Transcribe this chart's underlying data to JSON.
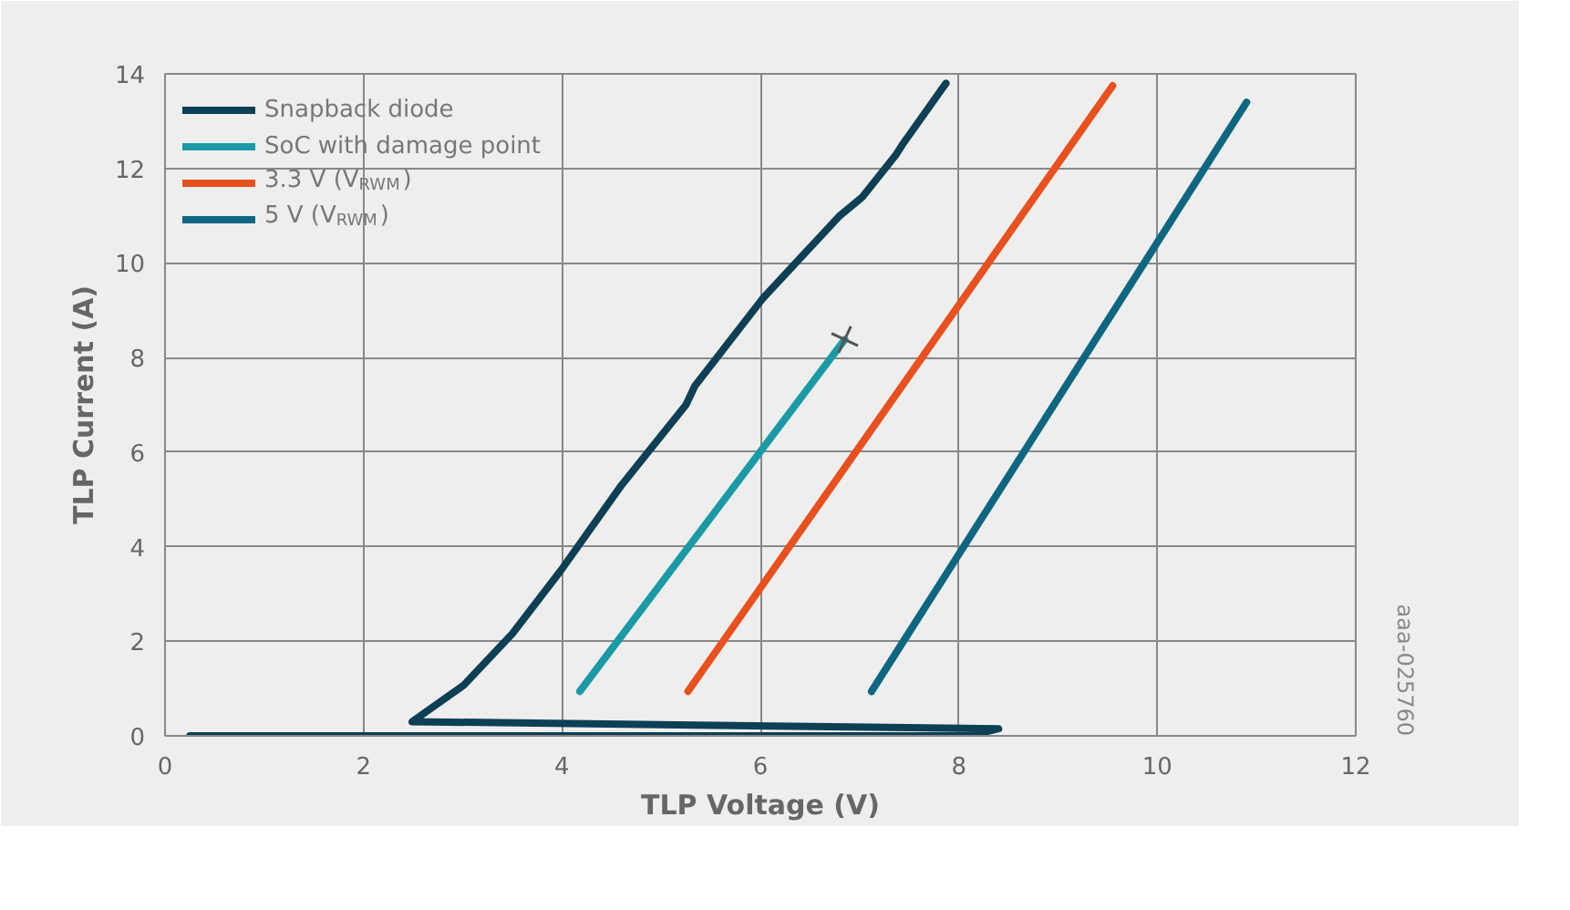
{
  "chart_data": {
    "type": "line",
    "xlabel": "TLP Voltage (V)",
    "ylabel": "TLP Current (A)",
    "xlim": [
      0,
      12
    ],
    "ylim": [
      0,
      14
    ],
    "xticks": [
      0,
      2,
      4,
      6,
      8,
      10,
      12
    ],
    "yticks": [
      0,
      2,
      4,
      6,
      8,
      10,
      12,
      14
    ],
    "grid": true,
    "legend": "top left",
    "line_style": "solid",
    "annotations": [
      "aaa-025760"
    ],
    "series": [
      {
        "name": "Snapback diode",
        "color": "#0d3f55",
        "x": [
          0.25,
          8.1,
          8.4,
          2.49,
          3.01,
          3.5,
          3.99,
          4.6,
          5.25,
          5.34,
          6.02,
          6.4,
          6.8,
          7.03,
          7.37,
          7.43,
          7.87
        ],
        "values": [
          0,
          0,
          0.15,
          0.3,
          1.07,
          2.16,
          3.5,
          5.3,
          7.0,
          7.4,
          9.24,
          10.1,
          11.0,
          11.4,
          12.3,
          12.5,
          13.8
        ]
      },
      {
        "name": "SoC with damage point",
        "color": "#1a9aa5",
        "x": [
          4.18,
          6.85
        ],
        "values": [
          0.94,
          8.38
        ]
      },
      {
        "name": "3.3 V (V$_{RWM}$)",
        "color": "#e8501e",
        "x": [
          5.27,
          9.55
        ],
        "values": [
          0.94,
          13.75
        ]
      },
      {
        "name": "5 V (V$_{RWM}$)",
        "color": "#0e6781",
        "x": [
          7.12,
          10.9
        ],
        "values": [
          0.94,
          13.4
        ]
      },
      {
        "type": "scatter",
        "marker": "cross",
        "color": "#555555",
        "x": [
          6.85
        ],
        "values": [
          8.38
        ]
      }
    ]
  }
}
